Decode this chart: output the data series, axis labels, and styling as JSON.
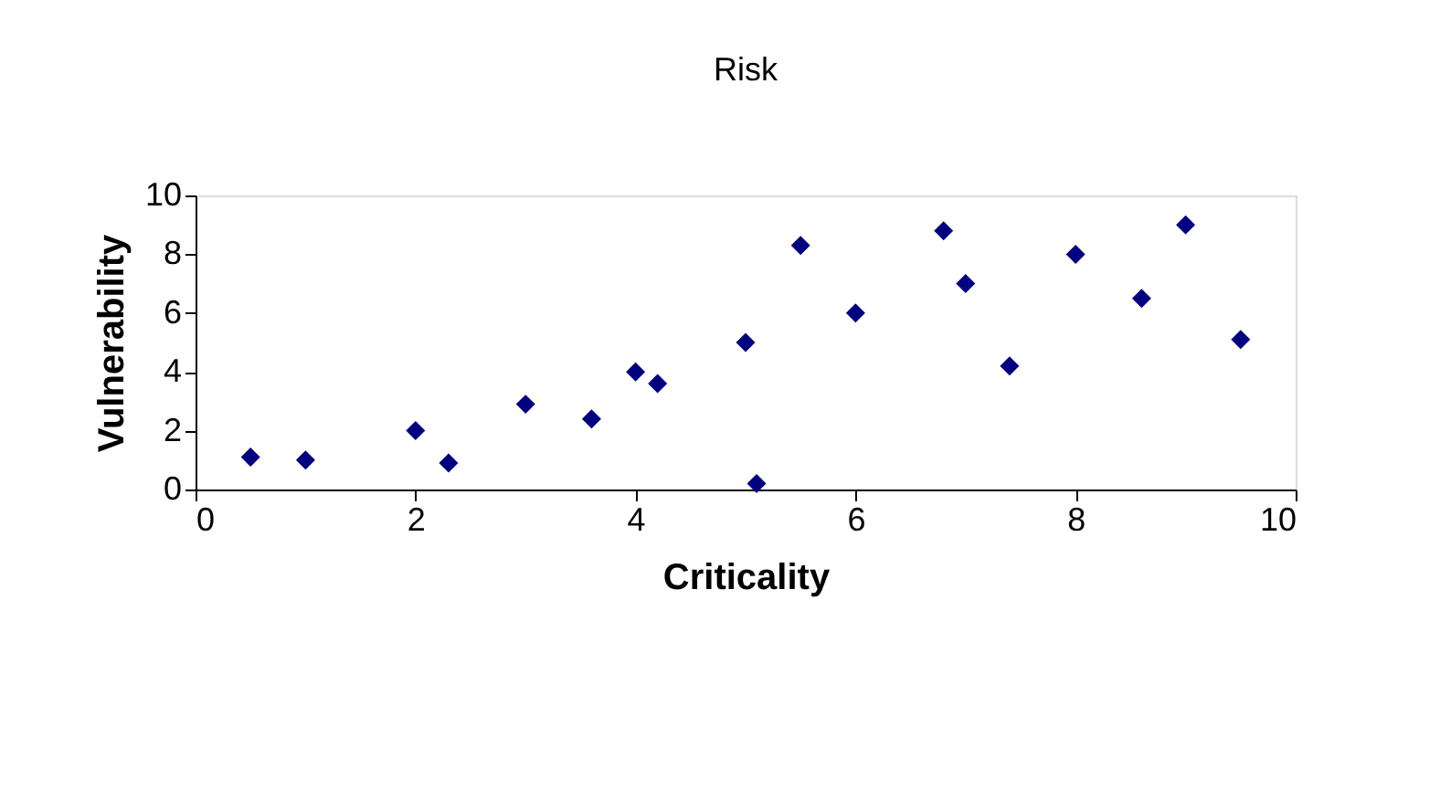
{
  "chart_data": {
    "type": "scatter",
    "title": "Risk",
    "xlabel": "Criticality",
    "ylabel": "Vulnerability",
    "x": [
      0.5,
      1.0,
      2.0,
      2.3,
      3.0,
      3.6,
      4.0,
      4.2,
      5.0,
      5.1,
      5.5,
      6.0,
      6.8,
      7.0,
      7.4,
      8.0,
      8.6,
      9.0,
      9.5
    ],
    "series": [
      {
        "color": "#000080",
        "values": [
          1.1,
          1.0,
          2.0,
          0.9,
          2.9,
          2.4,
          4.0,
          3.6,
          5.0,
          0.2,
          8.3,
          6.0,
          8.8,
          7.0,
          4.2,
          8.0,
          6.5,
          9.0,
          5.1
        ]
      }
    ],
    "xlim": [
      0,
      10
    ],
    "ylim": [
      0,
      10
    ],
    "xticks": [
      0,
      2,
      4,
      6,
      8,
      10
    ],
    "yticks": [
      0,
      2,
      4,
      6,
      8,
      10
    ],
    "marker": "diamond",
    "grid": false,
    "legend": false
  }
}
